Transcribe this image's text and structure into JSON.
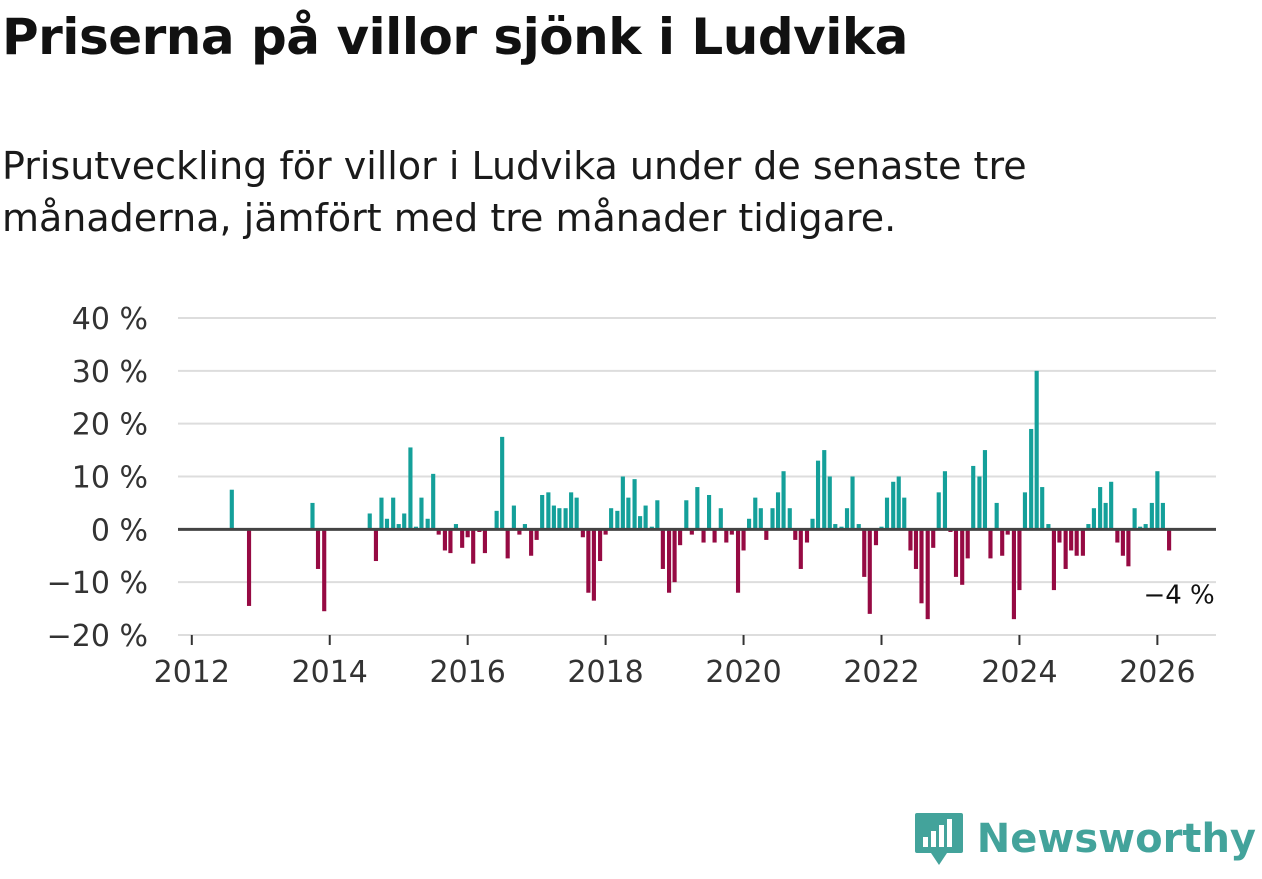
{
  "header": {
    "title": "Priserna på villor sjönk i Ludvika",
    "subtitle": "Prisutveckling för villor i Ludvika under de senaste tre månaderna, jämfört med tre månader tidigare."
  },
  "brand": {
    "name": "Newsworthy"
  },
  "colors": {
    "positive": "#14a09a",
    "negative": "#960a43",
    "grid": "#dddddd",
    "zero": "#444444",
    "brand": "#43a39b"
  },
  "chart_data": {
    "type": "bar",
    "title": "Priserna på villor sjönk i Ludvika",
    "xlabel": "",
    "ylabel": "",
    "ylim": [
      -20,
      40
    ],
    "xlim": [
      2011.8,
      2026.85
    ],
    "yticks": [
      40,
      30,
      20,
      10,
      0,
      -10,
      -20
    ],
    "ytick_labels": [
      "40 %",
      "30 %",
      "20 %",
      "10 %",
      "0 %",
      "−10 %",
      "−20 %"
    ],
    "xticks": [
      2012,
      2014,
      2016,
      2018,
      2020,
      2022,
      2024,
      2026
    ],
    "xtick_labels": [
      "2012",
      "2014",
      "2016",
      "2018",
      "2020",
      "2022",
      "2024",
      "2026"
    ],
    "annotation": {
      "text": "−4 %",
      "x": 2026.17,
      "y": -4
    },
    "series": [
      {
        "name": "Prisutveckling",
        "x": [
          2012.58,
          2012.83,
          2013.75,
          2013.83,
          2013.92,
          2014.58,
          2014.67,
          2014.75,
          2014.83,
          2014.92,
          2015.0,
          2015.08,
          2015.17,
          2015.25,
          2015.33,
          2015.42,
          2015.5,
          2015.58,
          2015.67,
          2015.75,
          2015.83,
          2015.92,
          2016.0,
          2016.08,
          2016.17,
          2016.25,
          2016.42,
          2016.5,
          2016.58,
          2016.67,
          2016.75,
          2016.83,
          2016.92,
          2017.0,
          2017.08,
          2017.17,
          2017.25,
          2017.33,
          2017.42,
          2017.5,
          2017.58,
          2017.67,
          2017.75,
          2017.83,
          2017.92,
          2018.0,
          2018.08,
          2018.17,
          2018.25,
          2018.33,
          2018.42,
          2018.5,
          2018.58,
          2018.67,
          2018.75,
          2018.83,
          2018.92,
          2019.0,
          2019.08,
          2019.17,
          2019.25,
          2019.33,
          2019.42,
          2019.5,
          2019.58,
          2019.67,
          2019.75,
          2019.83,
          2019.92,
          2020.0,
          2020.08,
          2020.17,
          2020.25,
          2020.33,
          2020.42,
          2020.5,
          2020.58,
          2020.67,
          2020.75,
          2020.83,
          2020.92,
          2021.0,
          2021.08,
          2021.17,
          2021.25,
          2021.33,
          2021.42,
          2021.5,
          2021.58,
          2021.67,
          2021.75,
          2021.83,
          2021.92,
          2022.0,
          2022.08,
          2022.17,
          2022.25,
          2022.33,
          2022.42,
          2022.5,
          2022.58,
          2022.67,
          2022.75,
          2022.83,
          2022.92,
          2023.0,
          2023.08,
          2023.17,
          2023.25,
          2023.33,
          2023.42,
          2023.5,
          2023.58,
          2023.67,
          2023.75,
          2023.83,
          2023.92,
          2024.0,
          2024.08,
          2024.17,
          2024.25,
          2024.33,
          2024.42,
          2024.5,
          2024.58,
          2024.67,
          2024.75,
          2024.83,
          2024.92,
          2025.0,
          2025.08,
          2025.17,
          2025.25,
          2025.33,
          2025.42,
          2025.5,
          2025.58,
          2025.67,
          2025.75,
          2025.83,
          2025.92,
          2026.0,
          2026.08,
          2026.17
        ],
        "values": [
          7.5,
          -14.5,
          5,
          -7.5,
          -15.5,
          3,
          -6,
          6,
          2,
          6,
          1,
          3,
          15.5,
          0.5,
          6,
          2,
          10.5,
          -1,
          -4,
          -4.5,
          1,
          -3.5,
          -1.5,
          -6.5,
          -0.5,
          -4.5,
          3.5,
          17.5,
          -5.5,
          4.5,
          -1,
          1,
          -5,
          -2,
          6.5,
          7,
          4.5,
          4,
          4,
          7,
          6,
          -1.5,
          -12,
          -13.5,
          -6,
          -1,
          4,
          3.5,
          10,
          6,
          9.5,
          2.5,
          4.5,
          0.5,
          5.5,
          -7.5,
          -12,
          -10,
          -3,
          5.5,
          -1,
          8,
          -2.5,
          6.5,
          -2.5,
          4,
          -2.5,
          -1,
          -12,
          -4,
          2,
          6,
          4,
          -2,
          4,
          7,
          11,
          4,
          -2,
          -7.5,
          -2.5,
          2,
          13,
          15,
          10,
          1,
          0.5,
          4,
          10,
          1,
          -9,
          -16,
          -3,
          0.5,
          6,
          9,
          10,
          6,
          -4,
          -7.5,
          -14,
          -17,
          -3.5,
          7,
          11,
          -0.5,
          -9,
          -10.5,
          -5.5,
          12,
          10,
          15,
          -5.5,
          5,
          -5,
          -1,
          -17,
          -11.5,
          7,
          19,
          30,
          8,
          1,
          -11.5,
          -2.5,
          -7.5,
          -4,
          -5,
          -5,
          1,
          4,
          8,
          5,
          9,
          -2.5,
          -5,
          -7,
          4,
          0.5,
          1,
          5,
          11,
          5,
          -4
        ]
      }
    ]
  }
}
